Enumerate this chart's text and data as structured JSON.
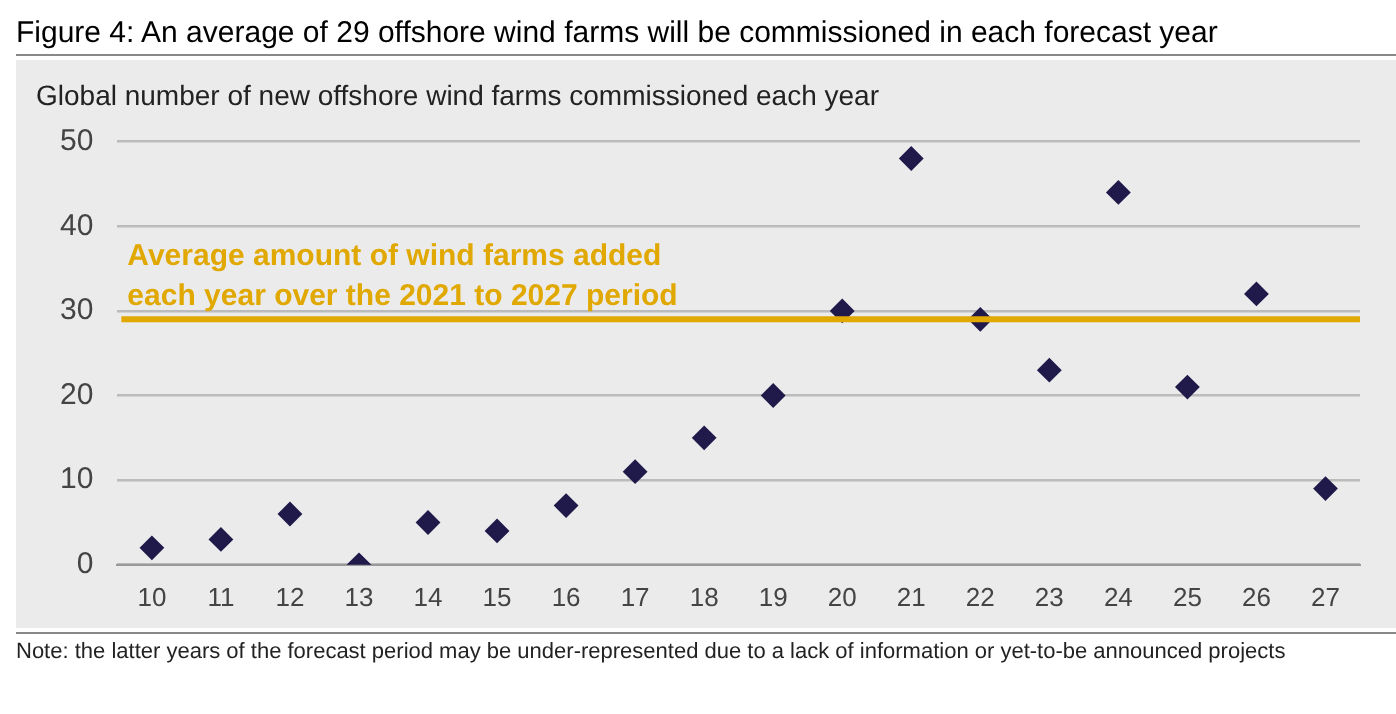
{
  "chart_data": {
    "type": "scatter",
    "title": "Figure 4: An average of 29 offshore wind farms will be commissioned in each forecast year",
    "subtitle": "Global number of new offshore wind farms commissioned each year",
    "categories": [
      "10",
      "11",
      "12",
      "13",
      "14",
      "15",
      "16",
      "17",
      "18",
      "19",
      "20",
      "21",
      "22",
      "23",
      "24",
      "25",
      "26",
      "27"
    ],
    "series": [
      {
        "color": "#1f1a4a",
        "values": [
          2,
          3,
          6,
          0,
          5,
          4,
          7,
          11,
          15,
          20,
          30,
          48,
          29,
          23,
          44,
          21,
          32,
          9
        ]
      }
    ],
    "ylim": [
      0,
      50
    ],
    "yticks": [
      0,
      10,
      20,
      30,
      40,
      50
    ],
    "grid": "y",
    "marker": "diamond",
    "ref_lines": [
      {
        "axis": "y",
        "value": 29,
        "label": "Average amount of wind farms added\neach year over the 2021 to 2027 period",
        "color": "#e0a800"
      }
    ],
    "annotations": [
      "Note: the latter years of the forecast period may be under-represented due to a lack of information or yet-to-be announced projects"
    ]
  }
}
